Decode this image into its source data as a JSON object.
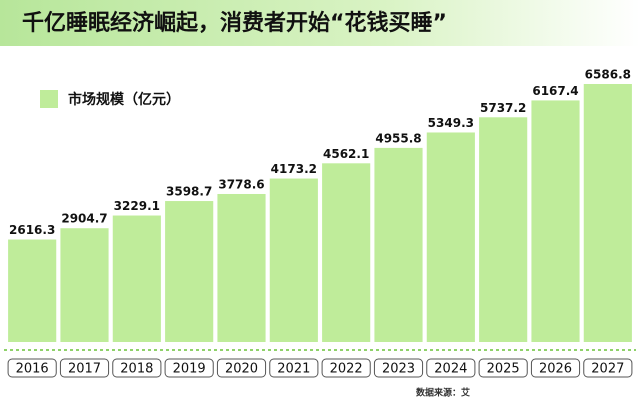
{
  "chart_data": {
    "type": "bar",
    "title": "千亿睡眠经济崛起，消费者开始“花钱买睡”",
    "legend": "市场规模（亿元）",
    "categories": [
      "2016",
      "2017",
      "2018",
      "2019",
      "2020",
      "2021",
      "2022",
      "2023",
      "2024",
      "2025",
      "2026",
      "2027"
    ],
    "values": [
      2616.3,
      2904.7,
      3229.1,
      3598.7,
      3778.6,
      4173.2,
      4562.1,
      4955.8,
      5349.3,
      5737.2,
      6167.4,
      6586.8
    ],
    "color": "#bfec9a",
    "source": "数据来源：艾"
  }
}
